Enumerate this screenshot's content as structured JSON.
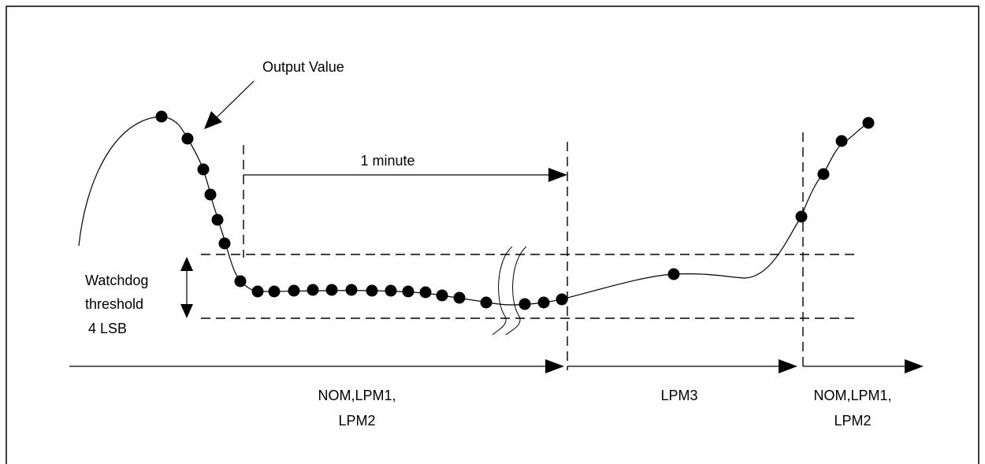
{
  "labels": {
    "output_value": "Output Value",
    "duration": "1 minute",
    "threshold_line1": "Watchdog",
    "threshold_line2": "threshold",
    "threshold_line3": "4 LSB",
    "phase1_line1": "NOM,LPM1,",
    "phase1_line2": "LPM2",
    "phase2_line1": "LPM3",
    "phase3_line1": "NOM,LPM1,",
    "phase3_line2": "LPM2"
  },
  "colors": {
    "stroke": "#000000",
    "background": "#ffffff"
  }
}
